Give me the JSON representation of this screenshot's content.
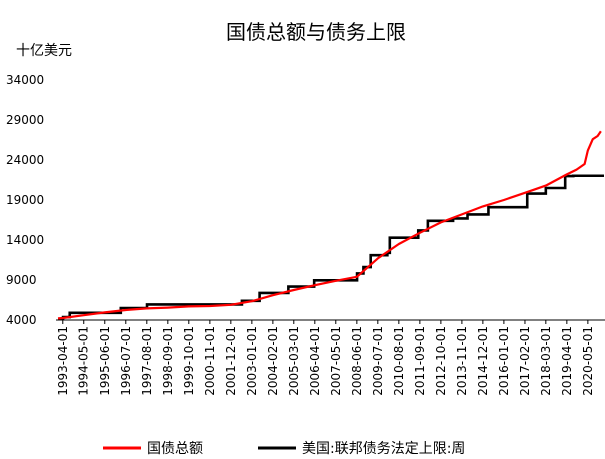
{
  "chart_data": {
    "type": "line",
    "title": "国债总额与债务上限",
    "ylabel": "十亿美元",
    "xlabel": "",
    "ylim": [
      4000,
      34000
    ],
    "yticks": [
      4000,
      9000,
      14000,
      19000,
      24000,
      29000,
      34000
    ],
    "xlim": [
      "1993-01-01",
      "2021-03-01"
    ],
    "categories": [
      "1993-04-01",
      "1994-05-01",
      "1995-06-01",
      "1996-07-01",
      "1997-08-01",
      "1998-09-01",
      "1999-10-01",
      "2000-11-01",
      "2001-12-01",
      "2003-01-01",
      "2004-02-01",
      "2005-03-01",
      "2006-04-01",
      "2007-05-01",
      "2008-06-01",
      "2009-07-01",
      "2010-08-01",
      "2011-09-01",
      "2012-10-01",
      "2013-11-01",
      "2014-12-01",
      "2016-01-01",
      "2017-02-01",
      "2018-03-01",
      "2019-04-01",
      "2020-05-01"
    ],
    "grid": false,
    "legend_position": "bottom",
    "series": [
      {
        "name": "国债总额",
        "color": "#ff0000",
        "x": [
          "1993-01-01",
          "1993-04-01",
          "1994-05-01",
          "1995-06-01",
          "1996-07-01",
          "1997-08-01",
          "1998-09-01",
          "1999-10-01",
          "2000-11-01",
          "2001-12-01",
          "2003-01-01",
          "2004-02-01",
          "2005-03-01",
          "2006-04-01",
          "2007-05-01",
          "2008-06-01",
          "2009-07-01",
          "2010-08-01",
          "2011-09-01",
          "2012-10-01",
          "2013-11-01",
          "2014-12-01",
          "2016-01-01",
          "2017-02-01",
          "2018-03-01",
          "2019-04-01",
          "2019-10-01",
          "2020-03-01",
          "2020-05-01",
          "2020-08-01",
          "2020-11-01",
          "2021-01-01"
        ],
        "values": [
          4200,
          4250,
          4600,
          4950,
          5250,
          5450,
          5550,
          5700,
          5750,
          5900,
          6350,
          7100,
          7750,
          8350,
          8900,
          9400,
          11700,
          13500,
          14900,
          16200,
          17200,
          18200,
          19000,
          19900,
          20800,
          22200,
          22800,
          23500,
          25200,
          26600,
          27000,
          27600
        ]
      },
      {
        "name": "美国:联邦债务法定上限:周",
        "color": "#000000",
        "x": [
          "1993-01-01",
          "1993-04-06",
          "1993-08-10",
          "1996-03-29",
          "1997-08-05",
          "2002-06-28",
          "2003-05-27",
          "2004-11-19",
          "2006-03-20",
          "2008-06-05",
          "2008-10-03",
          "2009-02-17",
          "2009-12-28",
          "2010-02-12",
          "2011-08-02",
          "2012-01-30",
          "2013-05-19",
          "2014-02-15",
          "2015-03-16",
          "2017-03-16",
          "2018-03-01",
          "2019-03-01",
          "2019-08-01",
          "2021-03-01"
        ],
        "values": [
          4145,
          4370,
          4900,
          5500,
          5950,
          6400,
          7384,
          8184,
          8965,
          9815,
          10615,
          12104,
          12394,
          14294,
          15194,
          16394,
          16700,
          17200,
          18100,
          19800,
          20500,
          21990,
          22030,
          22030
        ]
      }
    ]
  }
}
